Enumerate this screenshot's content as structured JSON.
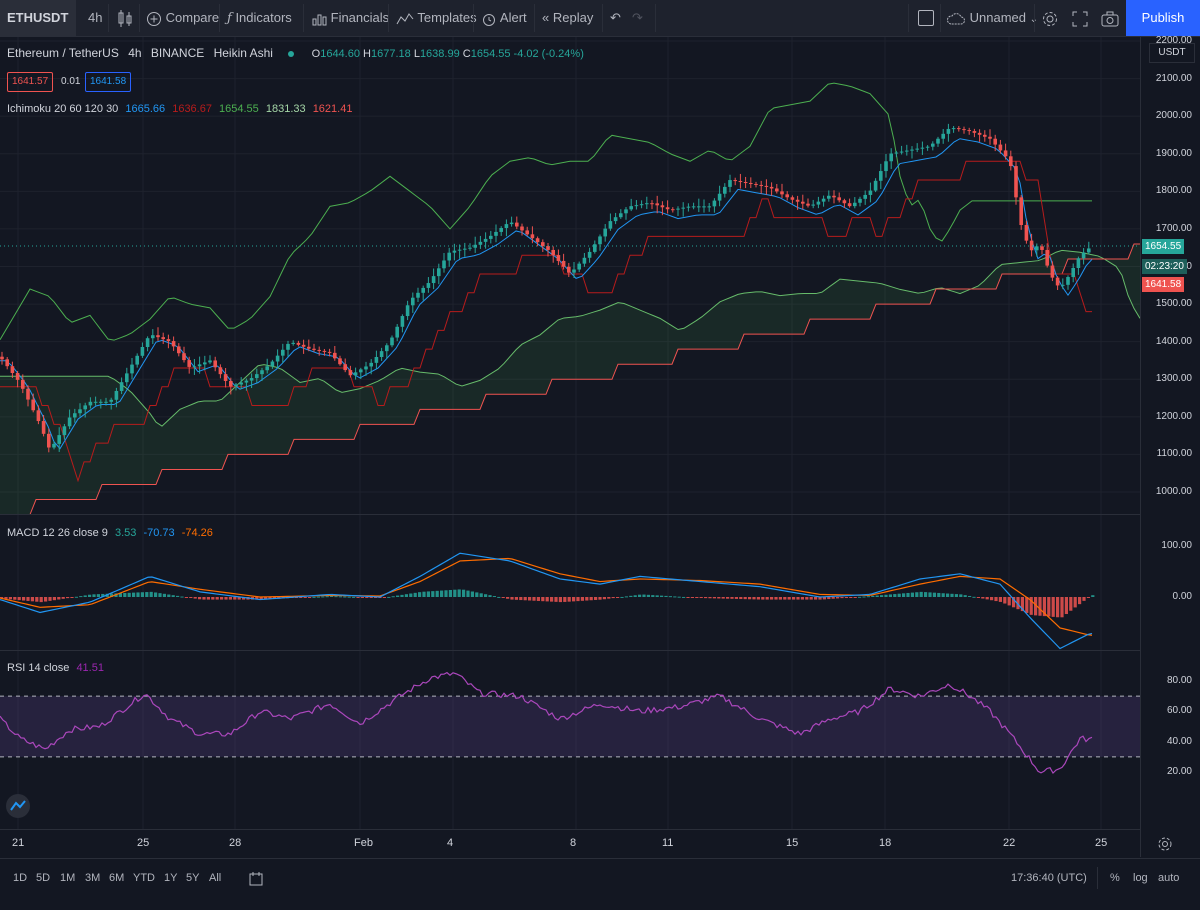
{
  "toolbar": {
    "symbol": "ETHUSDT",
    "interval": "4h",
    "compare": "Compare",
    "indicators": "Indicators",
    "financials": "Financials",
    "templates": "Templates",
    "alert": "Alert",
    "replay": "Replay",
    "layout_name": "Unnamed",
    "publish": "Publish"
  },
  "legend": {
    "pair": "Ethereum / TetherUS",
    "interval": "4h",
    "exchange": "BINANCE",
    "chart_style": "Heikin Ashi",
    "o_label": "O",
    "open": "1644.60",
    "h_label": "H",
    "high": "1677.18",
    "l_label": "L",
    "low": "1638.99",
    "c_label": "C",
    "close": "1654.55",
    "change": "-4.02 (-0.24%)",
    "bid": "1641.57",
    "spread": "0.01",
    "ask": "1641.58"
  },
  "ichimoku": {
    "name": "Ichimoku 20 60 120 30",
    "values": [
      "1665.66",
      "1636.67",
      "1654.55",
      "1831.33",
      "1621.41"
    ],
    "colors": [
      "#2196f3",
      "#b71c1c",
      "#4caf50",
      "#a5d6a7",
      "#ef5350"
    ]
  },
  "macd": {
    "name": "MACD 12 26 close 9",
    "values": [
      "3.53",
      "-70.73",
      "-74.26"
    ],
    "colors": [
      "#26a69a",
      "#2196f3",
      "#ff6d00"
    ]
  },
  "rsi": {
    "name": "RSI 14 close",
    "value": "41.51"
  },
  "price_axis": {
    "currency": "USDT",
    "labels": [
      "2200.00",
      "2100.00",
      "2000.00",
      "1900.00",
      "1800.00",
      "1700.00",
      "1600.00",
      "1500.00",
      "1400.00",
      "1300.00",
      "1200.00",
      "1100.00",
      "1000.00"
    ],
    "last_price": "1654.55",
    "countdown": "02:23:20",
    "ask_price": "1641.58"
  },
  "macd_axis": {
    "labels": [
      "100.00",
      "0.00"
    ]
  },
  "rsi_axis": {
    "labels": [
      "80.00",
      "60.00",
      "40.00",
      "20.00"
    ]
  },
  "time_axis": {
    "labels": [
      "21",
      "25",
      "28",
      "Feb",
      "4",
      "8",
      "11",
      "15",
      "18",
      "22",
      "25"
    ]
  },
  "bottom": {
    "ranges": [
      "1D",
      "5D",
      "1M",
      "3M",
      "6M",
      "YTD",
      "1Y",
      "5Y",
      "All"
    ],
    "clock": "17:36:40 (UTC)",
    "percent": "%",
    "log": "log",
    "auto": "auto"
  },
  "chart_data": [
    {
      "type": "candlestick",
      "title": "Ethereum / TetherUS · 4h · BINANCE · Heikin Ashi",
      "ylim": [
        950,
        2250
      ],
      "x_ticks": [
        "21",
        "25",
        "28",
        "Feb",
        "4",
        "8",
        "11",
        "15",
        "18",
        "22",
        "25"
      ],
      "close_path": [
        [
          0,
          1360
        ],
        [
          20,
          1290
        ],
        [
          40,
          1180
        ],
        [
          50,
          1110
        ],
        [
          70,
          1200
        ],
        [
          90,
          1240
        ],
        [
          110,
          1240
        ],
        [
          130,
          1330
        ],
        [
          150,
          1420
        ],
        [
          170,
          1400
        ],
        [
          190,
          1330
        ],
        [
          210,
          1350
        ],
        [
          230,
          1280
        ],
        [
          250,
          1300
        ],
        [
          270,
          1340
        ],
        [
          290,
          1400
        ],
        [
          310,
          1380
        ],
        [
          330,
          1370
        ],
        [
          350,
          1310
        ],
        [
          370,
          1340
        ],
        [
          390,
          1400
        ],
        [
          410,
          1510
        ],
        [
          430,
          1560
        ],
        [
          450,
          1640
        ],
        [
          470,
          1650
        ],
        [
          490,
          1680
        ],
        [
          510,
          1720
        ],
        [
          530,
          1680
        ],
        [
          550,
          1640
        ],
        [
          570,
          1580
        ],
        [
          590,
          1640
        ],
        [
          610,
          1720
        ],
        [
          630,
          1760
        ],
        [
          650,
          1770
        ],
        [
          670,
          1750
        ],
        [
          690,
          1760
        ],
        [
          710,
          1760
        ],
        [
          730,
          1830
        ],
        [
          750,
          1820
        ],
        [
          770,
          1810
        ],
        [
          790,
          1780
        ],
        [
          810,
          1760
        ],
        [
          830,
          1790
        ],
        [
          850,
          1760
        ],
        [
          870,
          1800
        ],
        [
          890,
          1900
        ],
        [
          910,
          1910
        ],
        [
          930,
          1920
        ],
        [
          950,
          1970
        ],
        [
          970,
          1960
        ],
        [
          990,
          1940
        ],
        [
          1010,
          1880
        ],
        [
          1020,
          1720
        ],
        [
          1030,
          1640
        ],
        [
          1040,
          1660
        ],
        [
          1050,
          1580
        ],
        [
          1060,
          1540
        ],
        [
          1070,
          1580
        ],
        [
          1080,
          1630
        ],
        [
          1092,
          1654.55
        ]
      ],
      "last": 1654.55
    },
    {
      "type": "line",
      "title": "MACD 12 26 close 9",
      "ylim": [
        -120,
        150
      ],
      "series": [
        {
          "name": "MACD",
          "values": [
            [
              0,
              -5
            ],
            [
              40,
              -30
            ],
            [
              90,
              -10
            ],
            [
              150,
              40
            ],
            [
              200,
              10
            ],
            [
              260,
              -5
            ],
            [
              330,
              5
            ],
            [
              380,
              0
            ],
            [
              420,
              40
            ],
            [
              460,
              85
            ],
            [
              510,
              70
            ],
            [
              560,
              35
            ],
            [
              600,
              25
            ],
            [
              640,
              40
            ],
            [
              700,
              30
            ],
            [
              760,
              20
            ],
            [
              820,
              0
            ],
            [
              870,
              5
            ],
            [
              920,
              35
            ],
            [
              960,
              45
            ],
            [
              1000,
              25
            ],
            [
              1030,
              -40
            ],
            [
              1060,
              -100
            ],
            [
              1090,
              -70.73
            ]
          ]
        },
        {
          "name": "Signal",
          "values": [
            [
              0,
              -2
            ],
            [
              40,
              -20
            ],
            [
              90,
              -15
            ],
            [
              150,
              30
            ],
            [
              200,
              15
            ],
            [
              260,
              0
            ],
            [
              330,
              3
            ],
            [
              380,
              2
            ],
            [
              420,
              30
            ],
            [
              460,
              70
            ],
            [
              510,
              75
            ],
            [
              560,
              45
            ],
            [
              600,
              30
            ],
            [
              640,
              35
            ],
            [
              700,
              32
            ],
            [
              760,
              25
            ],
            [
              820,
              5
            ],
            [
              870,
              3
            ],
            [
              920,
              25
            ],
            [
              960,
              40
            ],
            [
              1000,
              35
            ],
            [
              1030,
              -5
            ],
            [
              1060,
              -60
            ],
            [
              1090,
              -74.26
            ]
          ]
        }
      ],
      "histogram_last": 3.53
    },
    {
      "type": "line",
      "title": "RSI 14 close",
      "ylim": [
        15,
        90
      ],
      "bands": [
        30,
        70
      ],
      "series": [
        {
          "name": "RSI",
          "values": [
            [
              0,
              55
            ],
            [
              20,
              42
            ],
            [
              45,
              35
            ],
            [
              70,
              48
            ],
            [
              100,
              50
            ],
            [
              145,
              72
            ],
            [
              170,
              55
            ],
            [
              200,
              45
            ],
            [
              230,
              45
            ],
            [
              260,
              60
            ],
            [
              290,
              55
            ],
            [
              330,
              65
            ],
            [
              360,
              52
            ],
            [
              400,
              70
            ],
            [
              430,
              82
            ],
            [
              455,
              85
            ],
            [
              480,
              72
            ],
            [
              520,
              70
            ],
            [
              560,
              55
            ],
            [
              600,
              65
            ],
            [
              640,
              60
            ],
            [
              680,
              63
            ],
            [
              720,
              70
            ],
            [
              760,
              55
            ],
            [
              800,
              45
            ],
            [
              830,
              55
            ],
            [
              860,
              60
            ],
            [
              890,
              75
            ],
            [
              920,
              70
            ],
            [
              950,
              78
            ],
            [
              970,
              70
            ],
            [
              990,
              60
            ],
            [
              1010,
              45
            ],
            [
              1040,
              20
            ],
            [
              1060,
              22
            ],
            [
              1080,
              42
            ],
            [
              1090,
              41.51
            ]
          ]
        }
      ]
    }
  ]
}
